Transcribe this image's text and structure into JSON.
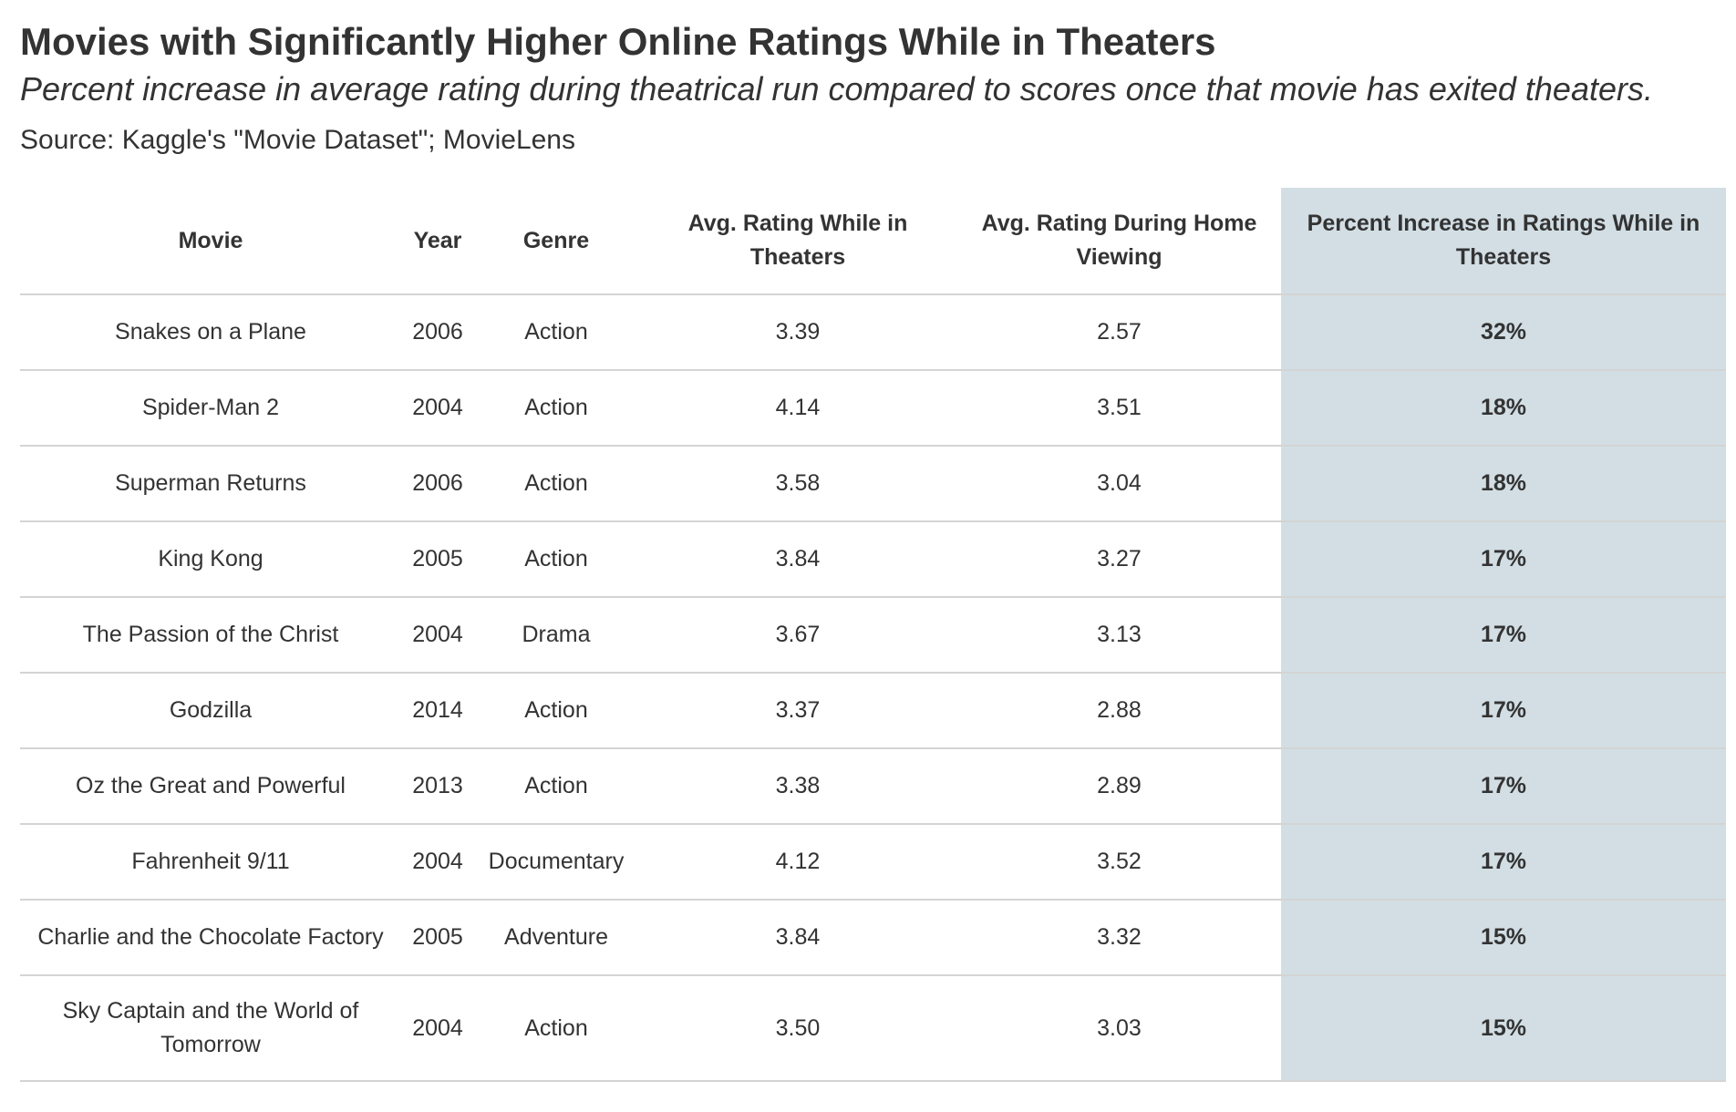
{
  "chart_data": {
    "type": "table",
    "title": "Movies with Significantly Higher Online Ratings While in Theaters",
    "subtitle": "Percent increase in average rating during theatrical run compared to scores once that movie has exited theaters.",
    "source": "Source: Kaggle's \"Movie Dataset\"; MovieLens",
    "highlight_color": "#d2dee4",
    "columns": [
      "Movie",
      "Year",
      "Genre",
      "Avg. Rating While in Theaters",
      "Avg. Rating During Home Viewing",
      "Percent Increase in Ratings While in Theaters"
    ],
    "rows": [
      {
        "movie": "Snakes on a Plane",
        "year": "2006",
        "genre": "Action",
        "theaters": "3.39",
        "home": "2.57",
        "pct": "32%"
      },
      {
        "movie": "Spider-Man 2",
        "year": "2004",
        "genre": "Action",
        "theaters": "4.14",
        "home": "3.51",
        "pct": "18%"
      },
      {
        "movie": "Superman Returns",
        "year": "2006",
        "genre": "Action",
        "theaters": "3.58",
        "home": "3.04",
        "pct": "18%"
      },
      {
        "movie": "King Kong",
        "year": "2005",
        "genre": "Action",
        "theaters": "3.84",
        "home": "3.27",
        "pct": "17%"
      },
      {
        "movie": "The Passion of the Christ",
        "year": "2004",
        "genre": "Drama",
        "theaters": "3.67",
        "home": "3.13",
        "pct": "17%"
      },
      {
        "movie": "Godzilla",
        "year": "2014",
        "genre": "Action",
        "theaters": "3.37",
        "home": "2.88",
        "pct": "17%"
      },
      {
        "movie": "Oz the Great and Powerful",
        "year": "2013",
        "genre": "Action",
        "theaters": "3.38",
        "home": "2.89",
        "pct": "17%"
      },
      {
        "movie": "Fahrenheit 9/11",
        "year": "2004",
        "genre": "Documentary",
        "theaters": "4.12",
        "home": "3.52",
        "pct": "17%"
      },
      {
        "movie": "Charlie and the Chocolate Factory",
        "year": "2005",
        "genre": "Adventure",
        "theaters": "3.84",
        "home": "3.32",
        "pct": "15%"
      },
      {
        "movie": "Sky Captain and the World of Tomorrow",
        "year": "2004",
        "genre": "Action",
        "theaters": "3.50",
        "home": "3.03",
        "pct": "15%"
      }
    ]
  }
}
